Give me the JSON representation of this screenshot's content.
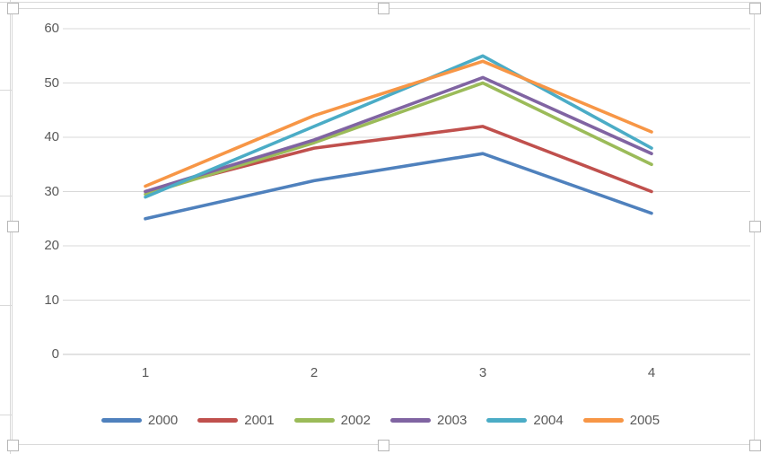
{
  "chart": {
    "type_label": "line",
    "y_tick_labels": [
      "60",
      "50",
      "40",
      "30",
      "20",
      "10",
      "0"
    ],
    "x_tick_labels": [
      "1",
      "2",
      "3",
      "4"
    ],
    "grid_color": "#d9d9d9",
    "axis_text_color": "#595959"
  },
  "chart_data": {
    "type": "line",
    "categories": [
      "1",
      "2",
      "3",
      "4"
    ],
    "x": [
      1,
      2,
      3,
      4
    ],
    "series": [
      {
        "name": "2000",
        "color": "#4F81BD",
        "values": [
          25,
          32,
          37,
          26
        ]
      },
      {
        "name": "2001",
        "color": "#C0504D",
        "values": [
          30,
          38,
          42,
          30
        ]
      },
      {
        "name": "2002",
        "color": "#9BBB59",
        "values": [
          29.5,
          39,
          50,
          35
        ]
      },
      {
        "name": "2003",
        "color": "#8064A2",
        "values": [
          30,
          39.5,
          51,
          37
        ]
      },
      {
        "name": "2004",
        "color": "#4BACC6",
        "values": [
          29,
          42,
          55,
          38
        ]
      },
      {
        "name": "2005",
        "color": "#F79646",
        "values": [
          31,
          44,
          54,
          41
        ]
      }
    ],
    "title": "",
    "xlabel": "",
    "ylabel": "",
    "ylim": [
      0,
      60
    ],
    "yticks": [
      0,
      10,
      20,
      30,
      40,
      50,
      60
    ],
    "grid": true,
    "legend_position": "bottom"
  }
}
